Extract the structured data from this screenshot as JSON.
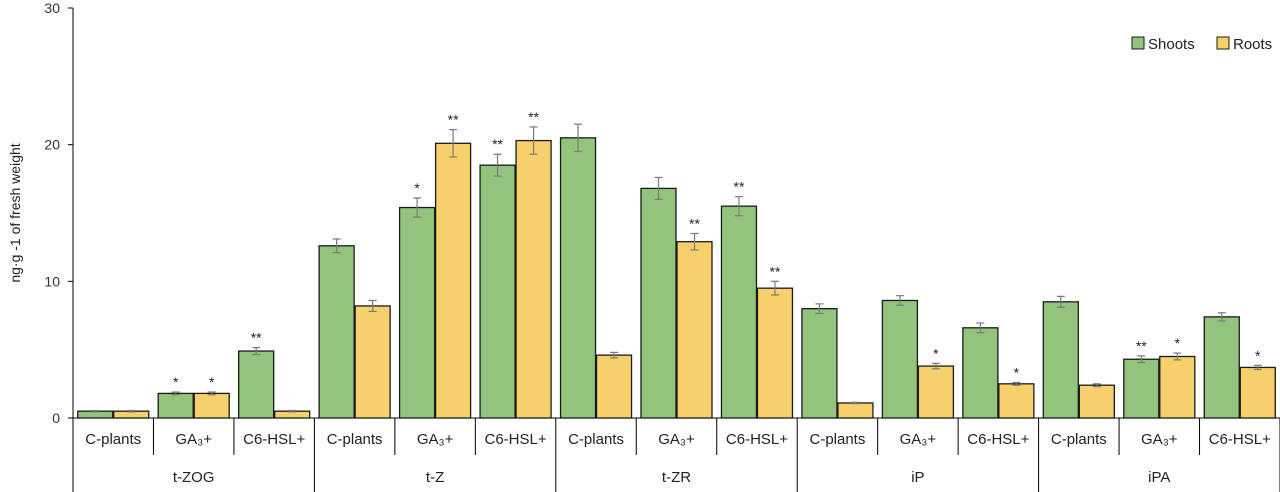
{
  "chart_data": {
    "type": "bar",
    "ylabel": "ng·g -1 of fresh weight",
    "ylim": [
      0,
      30
    ],
    "yticks": [
      0,
      10,
      20,
      30
    ],
    "grid": false,
    "legend_position": "top-right",
    "colors": {
      "Shoots": "#93c47d",
      "Roots": "#f6d06b",
      "error_bar": "#7a7a7a",
      "axis": "#000000"
    },
    "groups": [
      {
        "name": "t-ZOG",
        "categories": [
          "C-plants",
          "GA₃+",
          "C6-HSL+"
        ]
      },
      {
        "name": "t-Z",
        "categories": [
          "C-plants",
          "GA₃+",
          "C6-HSL+"
        ]
      },
      {
        "name": "t-ZR",
        "categories": [
          "C-plants",
          "GA₃+",
          "C6-HSL+"
        ]
      },
      {
        "name": "iP",
        "categories": [
          "C-plants",
          "GA₃+",
          "C6-HSL+"
        ]
      },
      {
        "name": "iPA",
        "categories": [
          "C-plants",
          "GA₃+",
          "C6-HSL+"
        ]
      }
    ],
    "series": [
      {
        "name": "Shoots",
        "values": [
          0.5,
          1.8,
          4.9,
          12.6,
          15.4,
          18.5,
          20.5,
          16.8,
          15.5,
          8.0,
          8.6,
          6.6,
          8.5,
          4.3,
          7.4
        ],
        "errors": [
          0.05,
          0.1,
          0.25,
          0.5,
          0.7,
          0.8,
          1.0,
          0.8,
          0.7,
          0.35,
          0.35,
          0.35,
          0.4,
          0.25,
          0.3
        ],
        "significance": [
          "",
          "*",
          "**",
          "",
          "*",
          "**",
          "",
          "",
          "**",
          "",
          "",
          "",
          "",
          "**",
          ""
        ]
      },
      {
        "name": "Roots",
        "values": [
          0.5,
          1.8,
          0.5,
          8.2,
          20.1,
          20.3,
          4.6,
          12.9,
          9.5,
          1.1,
          3.8,
          2.5,
          2.4,
          4.5,
          3.7
        ],
        "errors": [
          0.05,
          0.1,
          0.05,
          0.4,
          1.0,
          1.0,
          0.2,
          0.6,
          0.5,
          0.05,
          0.2,
          0.1,
          0.1,
          0.25,
          0.15
        ],
        "significance": [
          "",
          "*",
          "",
          "",
          "**",
          "**",
          "",
          "**",
          "**",
          "",
          "*",
          "*",
          "",
          "*",
          "*"
        ]
      }
    ]
  }
}
